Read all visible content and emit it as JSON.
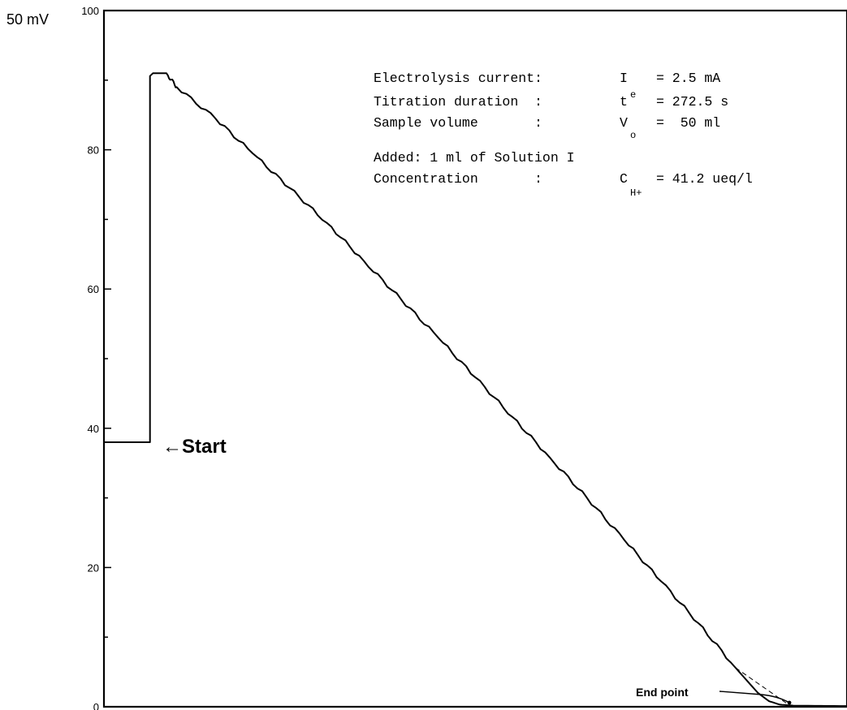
{
  "chart_data": {
    "type": "line",
    "y_unit_label": "50 mV",
    "ylim": [
      0,
      100
    ],
    "y_ticks": [
      0,
      20,
      40,
      60,
      80,
      100
    ],
    "y_minor_step": 10,
    "x_axis_labeled": false,
    "grid": false,
    "series": [
      {
        "points": [
          [
            0,
            38.0
          ],
          [
            6.2,
            38.0
          ],
          [
            6.2,
            90.6
          ],
          [
            6.6,
            91.0
          ],
          [
            8.4,
            91.0
          ],
          [
            8.6,
            90.7
          ],
          [
            9.8,
            89.0
          ],
          [
            15,
            84.5
          ],
          [
            20,
            79.5
          ],
          [
            25,
            74.5
          ],
          [
            30,
            69.5
          ],
          [
            35,
            64.0
          ],
          [
            40,
            58.5
          ],
          [
            45,
            53.0
          ],
          [
            50,
            47.3
          ],
          [
            55,
            41.6
          ],
          [
            60,
            35.8
          ],
          [
            65,
            30.0
          ],
          [
            70,
            24.0
          ],
          [
            75,
            18.0
          ],
          [
            80,
            12.0
          ],
          [
            85,
            5.6
          ],
          [
            88,
            2.0
          ],
          [
            89.5,
            0.8
          ],
          [
            91,
            0.3
          ],
          [
            93,
            0.15
          ],
          [
            100,
            0.1
          ]
        ]
      }
    ],
    "annotations": {
      "lines": [
        {
          "label": "Electrolysis current:",
          "symbol": "I",
          "symbol_sub": "",
          "symbol_sup": "",
          "value": "= 2.5 mA"
        },
        {
          "label": "Titration duration  :",
          "symbol": "t",
          "symbol_sub": "",
          "symbol_sup": "e",
          "value": "= 272.5 s"
        },
        {
          "label": "Sample volume       :",
          "symbol": "V",
          "symbol_sub": "o",
          "symbol_sup": "",
          "value": "=  50 ml"
        }
      ],
      "added_text": "Added: 1 ml of Solution I",
      "concentration": {
        "label": "Concentration       :",
        "symbol": "C",
        "symbol_sub": "H+",
        "value": "= 41.2 ueq/l"
      },
      "start_label": "←Start",
      "end_label": "End point"
    }
  }
}
